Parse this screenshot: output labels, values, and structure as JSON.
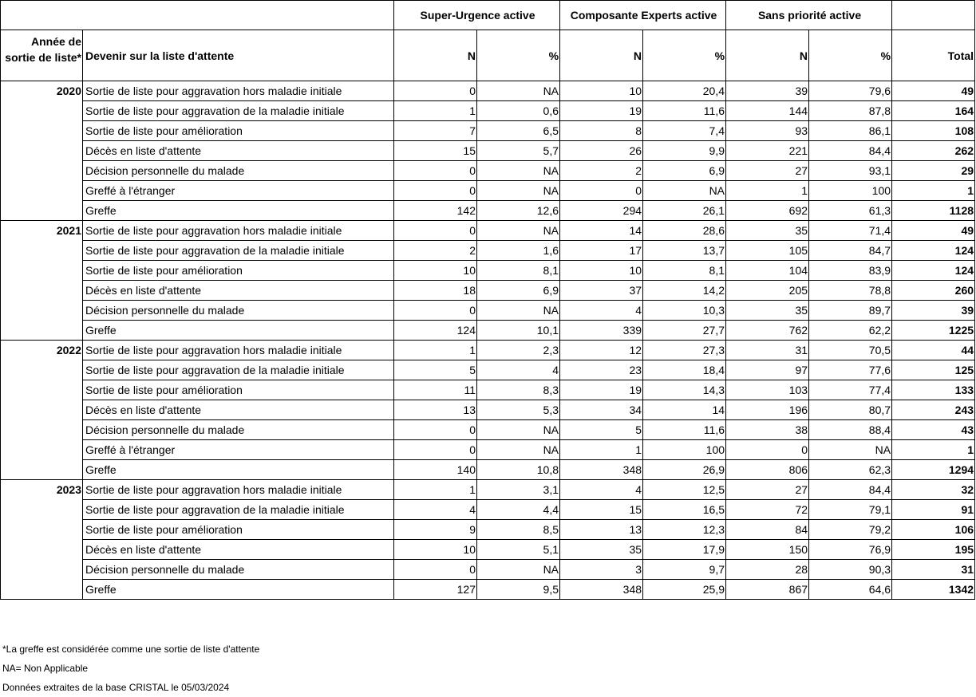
{
  "header": {
    "groups": [
      "Super-Urgence active",
      "Composante Experts active",
      "Sans priorité active"
    ],
    "columns": [
      "Année de sortie de liste*",
      "Devenir sur la liste d'attente",
      "N",
      "%",
      "N",
      "%",
      "N",
      "%",
      "Total"
    ]
  },
  "table": {
    "groups": [
      {
        "year": 2020,
        "rows": [
          [
            "Sortie de liste pour aggravation hors maladie initiale",
            0,
            "NA",
            10,
            "20,4",
            39,
            "79,6",
            49
          ],
          [
            "Sortie de liste pour aggravation de la maladie initiale",
            1,
            "0,6",
            19,
            "11,6",
            144,
            "87,8",
            164
          ],
          [
            "Sortie de liste pour amélioration",
            7,
            "6,5",
            8,
            "7,4",
            93,
            "86,1",
            108
          ],
          [
            "Décès en liste d'attente",
            15,
            "5,7",
            26,
            "9,9",
            221,
            "84,4",
            262
          ],
          [
            "Décision personnelle du malade",
            0,
            "NA",
            2,
            "6,9",
            27,
            "93,1",
            29
          ],
          [
            "Greffé à l'étranger",
            0,
            "NA",
            0,
            "NA",
            1,
            100,
            1
          ],
          [
            "Greffe",
            142,
            "12,6",
            294,
            "26,1",
            692,
            "61,3",
            1128
          ]
        ]
      },
      {
        "year": 2021,
        "rows": [
          [
            "Sortie de liste pour aggravation hors maladie initiale",
            0,
            "NA",
            14,
            "28,6",
            35,
            "71,4",
            49
          ],
          [
            "Sortie de liste pour aggravation de la maladie initiale",
            2,
            "1,6",
            17,
            "13,7",
            105,
            "84,7",
            124
          ],
          [
            "Sortie de liste pour amélioration",
            10,
            "8,1",
            10,
            "8,1",
            104,
            "83,9",
            124
          ],
          [
            "Décès en liste d'attente",
            18,
            "6,9",
            37,
            "14,2",
            205,
            "78,8",
            260
          ],
          [
            "Décision personnelle du malade",
            0,
            "NA",
            4,
            "10,3",
            35,
            "89,7",
            39
          ],
          [
            "Greffe",
            124,
            "10,1",
            339,
            "27,7",
            762,
            "62,2",
            1225
          ]
        ]
      },
      {
        "year": 2022,
        "rows": [
          [
            "Sortie de liste pour aggravation hors maladie initiale",
            1,
            "2,3",
            12,
            "27,3",
            31,
            "70,5",
            44
          ],
          [
            "Sortie de liste pour aggravation de la maladie initiale",
            5,
            4,
            23,
            "18,4",
            97,
            "77,6",
            125
          ],
          [
            "Sortie de liste pour amélioration",
            11,
            "8,3",
            19,
            "14,3",
            103,
            "77,4",
            133
          ],
          [
            "Décès en liste d'attente",
            13,
            "5,3",
            34,
            14,
            196,
            "80,7",
            243
          ],
          [
            "Décision personnelle du malade",
            0,
            "NA",
            5,
            "11,6",
            38,
            "88,4",
            43
          ],
          [
            "Greffé à l'étranger",
            0,
            "NA",
            1,
            100,
            0,
            "NA",
            1
          ],
          [
            "Greffe",
            140,
            "10,8",
            348,
            "26,9",
            806,
            "62,3",
            1294
          ]
        ]
      },
      {
        "year": 2023,
        "rows": [
          [
            "Sortie de liste pour aggravation hors maladie initiale",
            1,
            "3,1",
            4,
            "12,5",
            27,
            "84,4",
            32
          ],
          [
            "Sortie de liste pour aggravation de la maladie initiale",
            4,
            "4,4",
            15,
            "16,5",
            72,
            "79,1",
            91
          ],
          [
            "Sortie de liste pour amélioration",
            9,
            "8,5",
            13,
            "12,3",
            84,
            "79,2",
            106
          ],
          [
            "Décès en liste d'attente",
            10,
            "5,1",
            35,
            "17,9",
            150,
            "76,9",
            195
          ],
          [
            "Décision personnelle du malade",
            0,
            "NA",
            3,
            "9,7",
            28,
            "90,3",
            31
          ],
          [
            "Greffe",
            127,
            "9,5",
            348,
            "25,9",
            867,
            "64,6",
            1342
          ]
        ]
      }
    ]
  },
  "footnotes": [
    "*La greffe est considérée comme une sortie de liste d'attente",
    "NA= Non Applicable",
    "Données extraites de la base CRISTAL le 05/03/2024"
  ]
}
